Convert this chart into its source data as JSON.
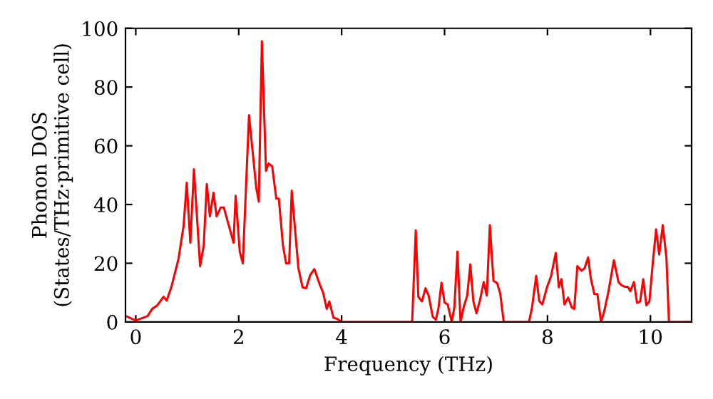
{
  "chart_data": {
    "type": "line",
    "xlabel": "Frequency (THz)",
    "ylabel": "Phonon DOS\n(States/THz·primitive cell)",
    "xlim": [
      -0.2,
      10.8
    ],
    "ylim": [
      0,
      100
    ],
    "xticks": [
      0,
      2,
      4,
      6,
      8,
      10
    ],
    "yticks": [
      0,
      20,
      40,
      60,
      80,
      100
    ],
    "grid": false,
    "marker": "none",
    "line_style": "solid",
    "series": [
      {
        "color": "#ff0000",
        "x": [
          -0.19,
          0.0,
          0.23,
          0.32,
          0.42,
          0.54,
          0.6,
          0.69,
          0.83,
          0.93,
          0.99,
          1.06,
          1.13,
          1.25,
          1.32,
          1.38,
          1.44,
          1.51,
          1.57,
          1.65,
          1.71,
          1.9,
          1.94,
          2.02,
          2.08,
          2.2,
          2.34,
          2.39,
          2.45,
          2.53,
          2.58,
          2.65,
          2.73,
          2.78,
          2.86,
          2.92,
          2.98,
          3.03,
          3.08,
          3.16,
          3.24,
          3.31,
          3.39,
          3.47,
          3.57,
          3.64,
          3.71,
          3.76,
          3.84,
          3.92,
          4.0,
          5.37,
          5.44,
          5.49,
          5.56,
          5.63,
          5.69,
          5.77,
          5.83,
          5.88,
          5.94,
          6.0,
          6.06,
          6.14,
          6.19,
          6.25,
          6.31,
          6.37,
          6.44,
          6.5,
          6.56,
          6.62,
          6.69,
          6.76,
          6.82,
          6.88,
          6.95,
          7.02,
          7.08,
          7.15,
          7.64,
          7.7,
          7.78,
          7.84,
          7.9,
          7.99,
          8.07,
          8.16,
          8.22,
          8.27,
          8.33,
          8.4,
          8.47,
          8.52,
          8.58,
          8.66,
          8.72,
          8.79,
          8.84,
          8.91,
          8.97,
          9.04,
          9.1,
          9.18,
          9.29,
          9.38,
          9.44,
          9.5,
          9.56,
          9.61,
          9.68,
          9.74,
          9.8,
          9.86,
          9.92,
          9.98,
          10.05,
          10.11,
          10.17,
          10.24,
          10.31,
          10.36,
          10.8
        ],
        "values": [
          2,
          0.5,
          2,
          4.5,
          5.7,
          8.6,
          7.3,
          11.8,
          21.5,
          32.8,
          47.4,
          27,
          52,
          19,
          26,
          47,
          36,
          44,
          36,
          39,
          39,
          27,
          43,
          24,
          20,
          70.4,
          45.8,
          41,
          95.6,
          51.5,
          54,
          53,
          42,
          42,
          26,
          20,
          20,
          44.7,
          34.5,
          18.3,
          11.8,
          11.5,
          16,
          18,
          13,
          10,
          4.5,
          7,
          1.5,
          1,
          0,
          0,
          31.2,
          8.6,
          7,
          11.5,
          9,
          1.8,
          0.8,
          4.5,
          13.4,
          6.6,
          6,
          0,
          5,
          24,
          0,
          5,
          9,
          19.6,
          7,
          3,
          7.6,
          13.6,
          9,
          33,
          14,
          13.3,
          9.8,
          0,
          0,
          5,
          15.7,
          7.1,
          6,
          11.8,
          15.7,
          23.5,
          11.8,
          14.6,
          6,
          8.3,
          5,
          4.5,
          19,
          17.5,
          18.3,
          22,
          15,
          9.5,
          9.5,
          0,
          3.5,
          10,
          21,
          13.6,
          12.5,
          12,
          12,
          10.5,
          13.6,
          6.5,
          7,
          14.6,
          5.7,
          7,
          21,
          31.5,
          23,
          33,
          22,
          0,
          0
        ]
      }
    ]
  }
}
